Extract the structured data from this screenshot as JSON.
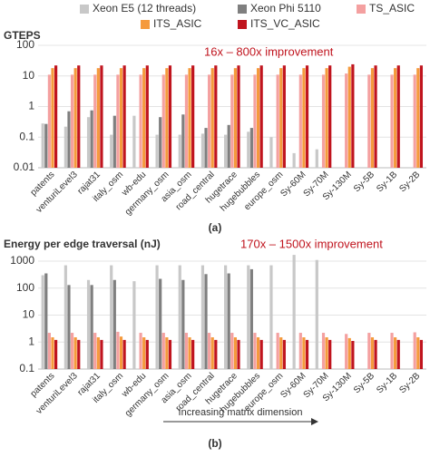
{
  "chart_data": [
    {
      "type": "bar",
      "title": "GTEPS",
      "annotation": "16x – 800x improvement",
      "caption": "(a)",
      "categories": [
        "patents",
        "venturiLevel3",
        "rajat31",
        "italy_osm",
        "wb-edu",
        "germany_osm",
        "asia_osm",
        "road_central",
        "hugetrace",
        "hugebubbles",
        "europe_osm",
        "Sy-60M",
        "Sy-70M",
        "Sy-130M",
        "Sy-5B",
        "Sy-1B",
        "Sy-2B"
      ],
      "series": [
        {
          "name": "Xeon E5 (12 threads)",
          "color": "#c8c8c8",
          "values": [
            0.28,
            0.22,
            0.45,
            0.12,
            0.5,
            0.12,
            0.12,
            0.13,
            0.12,
            0.15,
            0.1,
            0.03,
            0.04,
            null,
            null,
            null,
            null
          ]
        },
        {
          "name": "Xeon Phi 5110",
          "color": "#7f7f7f",
          "values": [
            0.27,
            0.7,
            0.75,
            0.5,
            null,
            0.45,
            0.55,
            0.2,
            0.25,
            0.2,
            null,
            null,
            null,
            null,
            null,
            null,
            null
          ]
        },
        {
          "name": "TS_ASIC",
          "color": "#f4a0a0",
          "values": [
            11,
            11,
            11,
            11,
            11,
            11,
            11,
            11,
            11,
            11,
            11,
            11,
            11,
            12,
            11,
            11,
            11
          ]
        },
        {
          "name": "ITS_ASIC",
          "color": "#f59a3c",
          "values": [
            18,
            18,
            18,
            18,
            18,
            18,
            18,
            18,
            18,
            18,
            18,
            18,
            18,
            20,
            18,
            18,
            18
          ]
        },
        {
          "name": "ITS_VC_ASIC",
          "color": "#c0141e",
          "values": [
            22,
            22,
            22,
            22,
            22,
            22,
            22,
            22,
            22,
            22,
            22,
            22,
            22,
            24,
            22,
            22,
            22
          ]
        }
      ],
      "log_scale": true,
      "ylim": [
        0.01,
        100
      ],
      "yticks": [
        {
          "value": 0.01,
          "label": "0.01"
        },
        0.1,
        1,
        10,
        100
      ],
      "grid": true
    },
    {
      "type": "bar",
      "title": "Energy per edge traversal (nJ)",
      "annotation": "170x – 1500x improvement",
      "caption": "(b)",
      "note": "Increasing matrix dimension",
      "categories": [
        "patents",
        "venturiLevel3",
        "rajat31",
        "italy_osm",
        "wb-edu",
        "germany_osm",
        "asia_osm",
        "road_central",
        "hugetrace",
        "hugebubbles",
        "europe_osm",
        "Sy-60M",
        "Sy-70M",
        "Sy-130M",
        "Sy-5B",
        "Sy-1B",
        "Sy-2B"
      ],
      "series": [
        {
          "color": "#c8c8c8",
          "values": [
            300,
            700,
            200,
            700,
            180,
            700,
            700,
            700,
            700,
            700,
            700,
            1700,
            1100,
            null,
            null,
            null,
            null
          ]
        },
        {
          "color": "#7f7f7f",
          "values": [
            350,
            130,
            130,
            200,
            null,
            220,
            200,
            330,
            350,
            500,
            null,
            null,
            null,
            null,
            null,
            null,
            null
          ]
        },
        {
          "color": "#f4a0a0",
          "values": [
            2.2,
            2.2,
            2.2,
            2.4,
            2.2,
            2.2,
            2.2,
            2.2,
            2.2,
            2.2,
            2.2,
            2.2,
            2.2,
            2.0,
            2.2,
            2.2,
            2.3
          ]
        },
        {
          "color": "#f59a3c",
          "values": [
            1.5,
            1.5,
            1.5,
            1.6,
            1.5,
            1.5,
            1.5,
            1.5,
            1.5,
            1.5,
            1.5,
            1.5,
            1.5,
            1.4,
            1.5,
            1.5,
            1.5
          ]
        },
        {
          "color": "#c0141e",
          "values": [
            1.2,
            1.2,
            1.2,
            1.2,
            1.2,
            1.2,
            1.2,
            1.2,
            1.2,
            1.2,
            1.2,
            1.2,
            1.2,
            1.1,
            1.2,
            1.2,
            1.2
          ]
        }
      ],
      "log_scale": true,
      "ylim": [
        0.1,
        2000
      ],
      "yticks": [
        0.1,
        1,
        10,
        100,
        1000
      ],
      "grid": true
    }
  ]
}
